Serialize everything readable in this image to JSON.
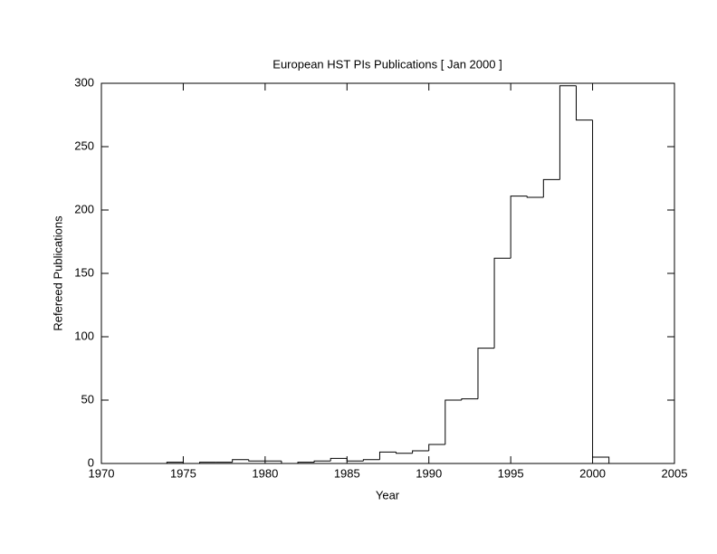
{
  "chart_data": {
    "type": "histogram",
    "title": "European HST PIs Publications [ Jan 2000 ]",
    "x_label": "Year",
    "y_label": "Refereed Publications",
    "bins": [
      1974,
      1975,
      1976,
      1977,
      1978,
      1979,
      1980,
      1981,
      1982,
      1983,
      1984,
      1985,
      1986,
      1987,
      1988,
      1989,
      1990,
      1991,
      1992,
      1993,
      1994,
      1995,
      1996,
      1997,
      1998,
      1999,
      2000,
      2001
    ],
    "values": [
      1,
      0,
      1,
      1,
      3,
      2,
      2,
      0,
      1,
      2,
      4,
      2,
      3,
      9,
      8,
      10,
      15,
      50,
      51,
      91,
      162,
      211,
      210,
      224,
      298,
      271,
      5
    ],
    "color": "#000000",
    "xlim": [
      1970,
      2005
    ],
    "xticks": [
      1970,
      1975,
      1980,
      1985,
      1990,
      1995,
      2000,
      2005
    ],
    "ylim": [
      0,
      300
    ],
    "yticks": [
      0,
      50,
      100,
      150,
      200,
      250,
      300
    ]
  }
}
